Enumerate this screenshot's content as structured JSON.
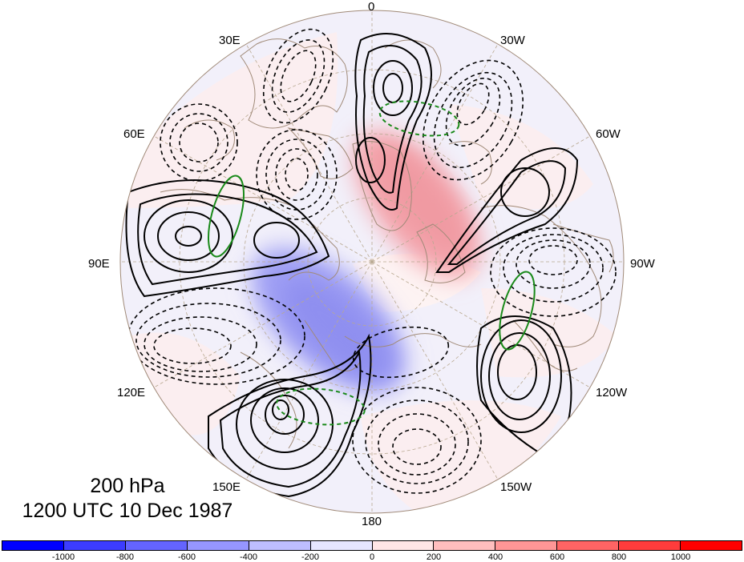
{
  "map": {
    "projection": "north-polar-stereographic",
    "longitude_labels": [
      "0",
      "30W",
      "60W",
      "90W",
      "120W",
      "150W",
      "180",
      "150E",
      "120E",
      "90E",
      "60E",
      "30E"
    ],
    "caption_line1": "200 hPa",
    "caption_line2": "1200 UTC 10 Dec 1987"
  },
  "colorbar": {
    "colors": [
      "#0000ff",
      "#3c3cff",
      "#6464ff",
      "#9696ff",
      "#bebeff",
      "#e6e6ff",
      "#ffe6e6",
      "#ffbebe",
      "#ff9696",
      "#ff6464",
      "#ff3c3c",
      "#ff0000"
    ],
    "ticks": [
      "-1000",
      "-800",
      "-600",
      "-400",
      "-200",
      "0",
      "200",
      "400",
      "600",
      "800",
      "1000"
    ]
  },
  "colors": {
    "solid_contour": "#000000",
    "dashed_contour": "#000000",
    "green_contour": "#1a8a1a",
    "coastline": "#a08a78",
    "graticule": "#b8a890"
  }
}
